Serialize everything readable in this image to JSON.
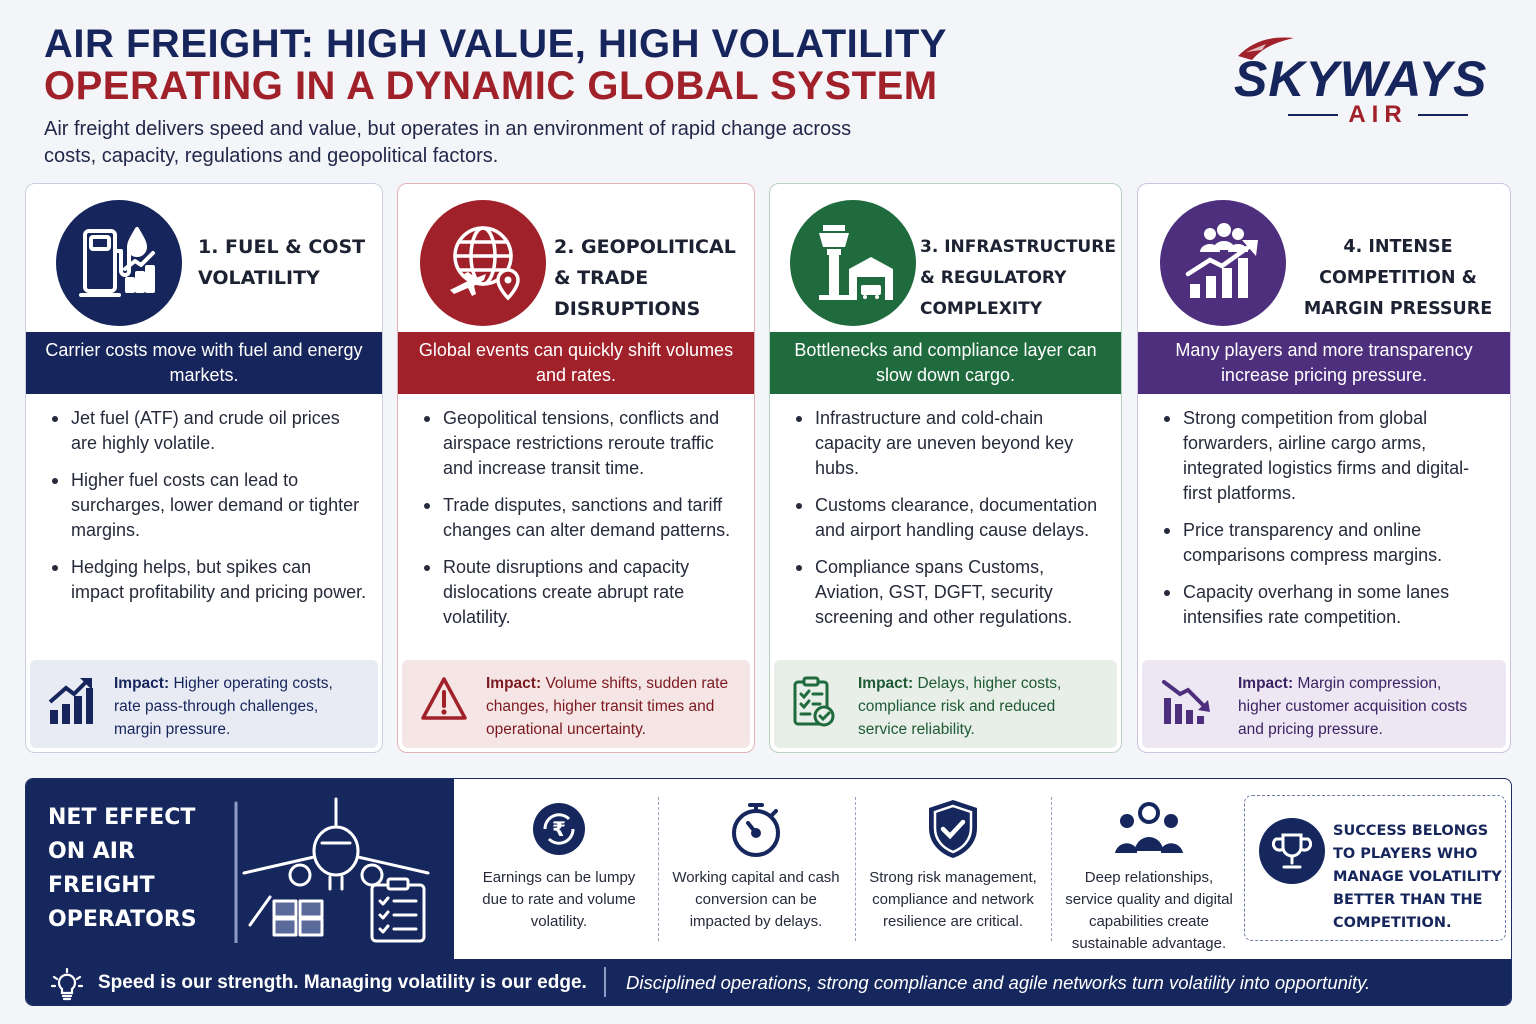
{
  "header": {
    "title_line1": "AIR FREIGHT: HIGH VALUE, HIGH VOLATILITY",
    "title_line2": "OPERATING IN A DYNAMIC GLOBAL SYSTEM",
    "subtitle": "Air freight delivers speed and value, but operates in an environment of rapid change across costs, capacity, regulations and geopolitical factors."
  },
  "logo": {
    "name": "SKYWAYS",
    "sub": "AIR"
  },
  "colors": {
    "navy": "#16255c",
    "red": "#a1212a",
    "green": "#1f6b3d",
    "purple": "#4e2f7d"
  },
  "cards": [
    {
      "icon": "fuel-pump-icon",
      "title": "1. Fuel & Cost Volatility",
      "band": "Carrier costs move with fuel and energy markets.",
      "bullets": [
        "Jet fuel (ATF) and crude oil prices are highly volatile.",
        "Higher fuel costs can lead to surcharges, lower demand or tighter margins.",
        "Hedging helps, but spikes can impact profitability and pricing power."
      ],
      "impact_label": "Impact:",
      "impact_text": "Higher operating costs, rate pass-through challenges, margin pressure.",
      "impact_icon": "rising-chart-icon"
    },
    {
      "icon": "globe-plane-icon",
      "title": "2. Geopolitical & Trade Disruptions",
      "band": "Global events can quickly shift volumes and rates.",
      "bullets": [
        "Geopolitical tensions, conflicts and airspace restrictions reroute traffic and increase transit time.",
        "Trade disputes, sanctions and tariff changes can alter demand patterns.",
        "Route disruptions and capacity dislocations create abrupt rate volatility."
      ],
      "impact_label": "Impact:",
      "impact_text": "Volume shifts, sudden rate changes, higher transit times and operational uncertainty.",
      "impact_icon": "warning-icon"
    },
    {
      "icon": "control-tower-icon",
      "title": "3. Infrastructure & Regulatory Complexity",
      "band": "Bottlenecks and compliance layer can slow down cargo.",
      "bullets": [
        "Infrastructure and cold-chain capacity are uneven beyond key hubs.",
        "Customs clearance, documentation and airport handling cause delays.",
        "Compliance spans Customs, Aviation, GST, DGFT, security screening and other regulations."
      ],
      "impact_label": "Impact:",
      "impact_text": "Delays, higher costs, compliance risk and reduced service reliability.",
      "impact_icon": "checklist-icon"
    },
    {
      "icon": "competition-chart-icon",
      "title": "4. Intense Competition & Margin Pressure",
      "band": "Many players and more transparency increase pricing pressure.",
      "bullets": [
        "Strong competition from global forwarders, airline cargo arms, integrated logistics firms and digital-first platforms.",
        "Price transparency and online comparisons compress margins.",
        "Capacity overhang in some lanes intensifies rate competition."
      ],
      "impact_label": "Impact:",
      "impact_text": "Margin compression, higher customer acquisition costs and pricing pressure.",
      "impact_icon": "falling-chart-icon"
    }
  ],
  "net_effect": {
    "title": "Net Effect on Air Freight Operators",
    "items": [
      {
        "icon": "rupee-cycle-icon",
        "text": "Earnings can be lumpy due to rate and volume volatility."
      },
      {
        "icon": "stopwatch-icon",
        "text": "Working capital and cash conversion can be impacted by delays."
      },
      {
        "icon": "shield-check-icon",
        "text": "Strong risk management, compliance and network resilience are critical."
      },
      {
        "icon": "team-icon",
        "text": "Deep relationships, service quality and digital capabilities create sustainable advantage."
      }
    ],
    "success": {
      "icon": "trophy-icon",
      "text": "Success belongs to players who manage volatility better than the competition."
    }
  },
  "footer": {
    "left": "Speed is our strength. Managing volatility is our edge.",
    "right": "Disciplined operations, strong compliance and agile networks turn volatility into opportunity."
  }
}
